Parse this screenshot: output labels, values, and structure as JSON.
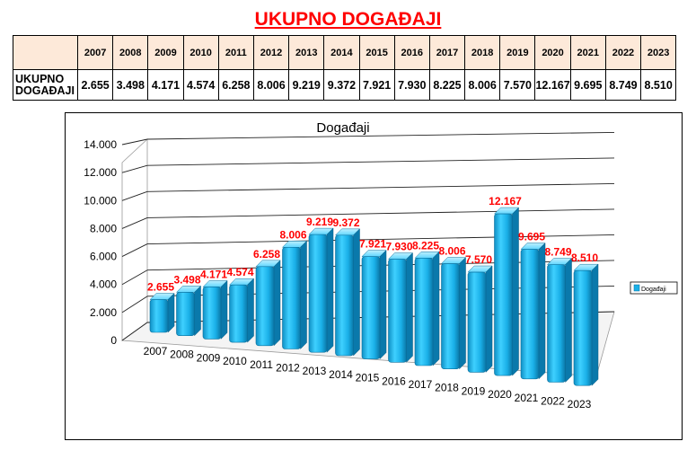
{
  "title": "UKUPNO DOGAĐAJI",
  "table": {
    "row_label": "UKUPNO DOGAĐAJI",
    "years": [
      "2007",
      "2008",
      "2009",
      "2010",
      "2011",
      "2012",
      "2013",
      "2014",
      "2015",
      "2016",
      "2017",
      "2018",
      "2019",
      "2020",
      "2021",
      "2022",
      "2023"
    ],
    "values": [
      "2.655",
      "3.498",
      "4.171",
      "4.574",
      "6.258",
      "8.006",
      "9.219",
      "9.372",
      "7.921",
      "7.930",
      "8.225",
      "8.006",
      "7.570",
      "12.167",
      "9.695",
      "8.749",
      "8.510"
    ]
  },
  "chart_data": {
    "type": "bar",
    "title": "Događaji",
    "categories": [
      "2007",
      "2008",
      "2009",
      "2010",
      "2011",
      "2012",
      "2013",
      "2014",
      "2015",
      "2016",
      "2017",
      "2018",
      "2019",
      "2020",
      "2021",
      "2022",
      "2023"
    ],
    "series": [
      {
        "name": "Događaji",
        "values": [
          2655,
          3498,
          4171,
          4574,
          6258,
          8006,
          9219,
          9372,
          7921,
          7930,
          8225,
          8006,
          7570,
          12167,
          9695,
          8749,
          8510
        ],
        "labels": [
          "2.655",
          "3.498",
          "4.171",
          "4.574",
          "6.258",
          "8.006",
          "9.219",
          "9.372",
          "7.921",
          "7.930",
          "8.225",
          "8.006",
          "7.570",
          "12.167",
          "9.695",
          "8.749",
          "8.510"
        ]
      }
    ],
    "ylim": [
      0,
      14000
    ],
    "yticks": [
      "0",
      "2.000",
      "4.000",
      "6.000",
      "8.000",
      "10.000",
      "12.000",
      "14.000"
    ],
    "xlabel": "",
    "ylabel": "",
    "grid": true,
    "legend": "right",
    "style": "3d",
    "colors": {
      "bar": "#1ab0e8",
      "label": "#ff0000"
    }
  }
}
